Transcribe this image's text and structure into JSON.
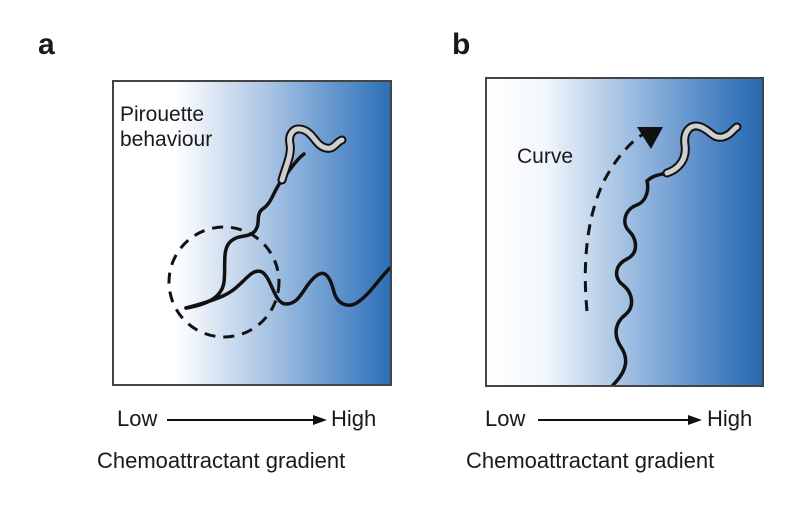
{
  "panels": {
    "a": {
      "letter": "a",
      "label_line1": "Pirouette",
      "label_line2": "behaviour",
      "axis_low": "Low",
      "axis_high": "High",
      "axis_title": "Chemoattractant gradient"
    },
    "b": {
      "letter": "b",
      "label": "Curve",
      "axis_low": "Low",
      "axis_high": "High",
      "axis_title": "Chemoattractant gradient"
    }
  },
  "colors": {
    "gradient_low": "#ffffff",
    "gradient_high": "#2e72b8",
    "worm_head": "#c8c8c8"
  }
}
